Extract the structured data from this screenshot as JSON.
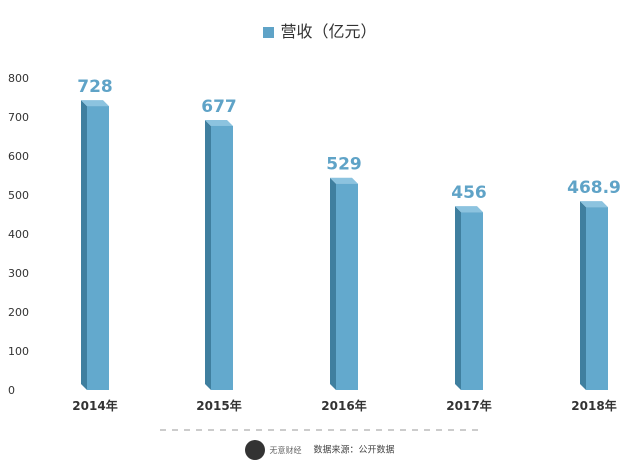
{
  "chart_data": {
    "type": "bar",
    "title": "",
    "xlabel": "",
    "ylabel": "",
    "categories": [
      "2014年",
      "2015年",
      "2016年",
      "2017年",
      "2018年"
    ],
    "series": [
      {
        "name": "营收（亿元）",
        "values": [
          728,
          677,
          529,
          456,
          468.9
        ],
        "labels": [
          "728",
          "677",
          "529",
          "456",
          "468.9"
        ]
      }
    ],
    "ylim": [
      0,
      800
    ],
    "yticks": [
      0,
      100,
      200,
      300,
      400,
      500,
      600,
      700,
      800
    ],
    "grid": false,
    "legend": "top-center",
    "colors": {
      "bar_front": "#63a9cd",
      "bar_side": "#3f7f9f",
      "bar_top": "#8cc3df",
      "data_label": "#5fa3c7"
    }
  },
  "legend": {
    "label": "营收（亿元）"
  },
  "footer": {
    "brand": "无意财经",
    "source": "数据来源：公开数据"
  }
}
